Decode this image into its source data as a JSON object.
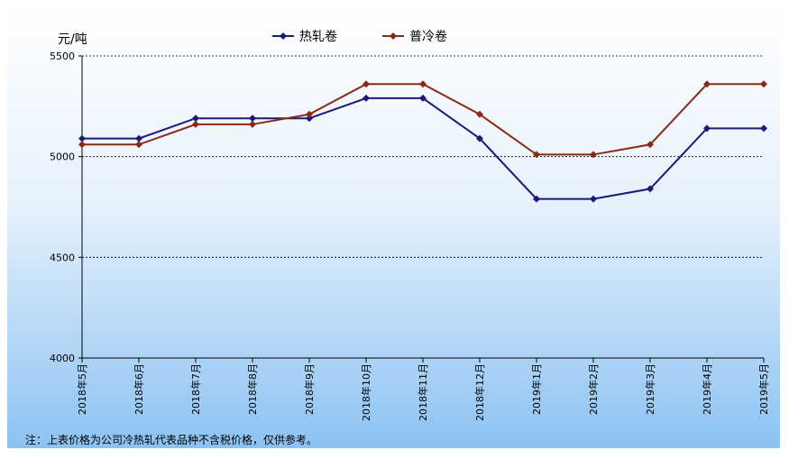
{
  "chart_data": {
    "type": "line",
    "title": "",
    "ylabel": "元/吨",
    "xlabel": "",
    "ylim": [
      4000,
      5500
    ],
    "yticks": [
      4000,
      4500,
      5000,
      5500
    ],
    "grid": "horizontal dashed",
    "legend_position": "top",
    "categories": [
      "2018年5月",
      "2018年6月",
      "2018年7月",
      "2018年8月",
      "2018年9月",
      "2018年10月",
      "2018年11月",
      "2018年12月",
      "2019年1月",
      "2019年2月",
      "2019年3月",
      "2019年4月",
      "2019年5月"
    ],
    "series": [
      {
        "name": "热轧卷",
        "color": "#1a1a7a",
        "marker": "diamond",
        "values": [
          5090,
          5090,
          5190,
          5190,
          5190,
          5290,
          5290,
          5090,
          4790,
          4790,
          4840,
          5140,
          5140
        ]
      },
      {
        "name": "普冷卷",
        "color": "#8b2a14",
        "marker": "diamond",
        "values": [
          5060,
          5060,
          5160,
          5160,
          5210,
          5360,
          5360,
          5210,
          5010,
          5010,
          5060,
          5360,
          5360
        ]
      }
    ],
    "note": "注：上表价格为公司冷热轧代表品种不含税价格，仅供参考。"
  },
  "colors": {
    "bg_top": "#ffffff",
    "bg_bottom": "#8fc4f4",
    "axis": "#000000",
    "grid": "#000000"
  }
}
